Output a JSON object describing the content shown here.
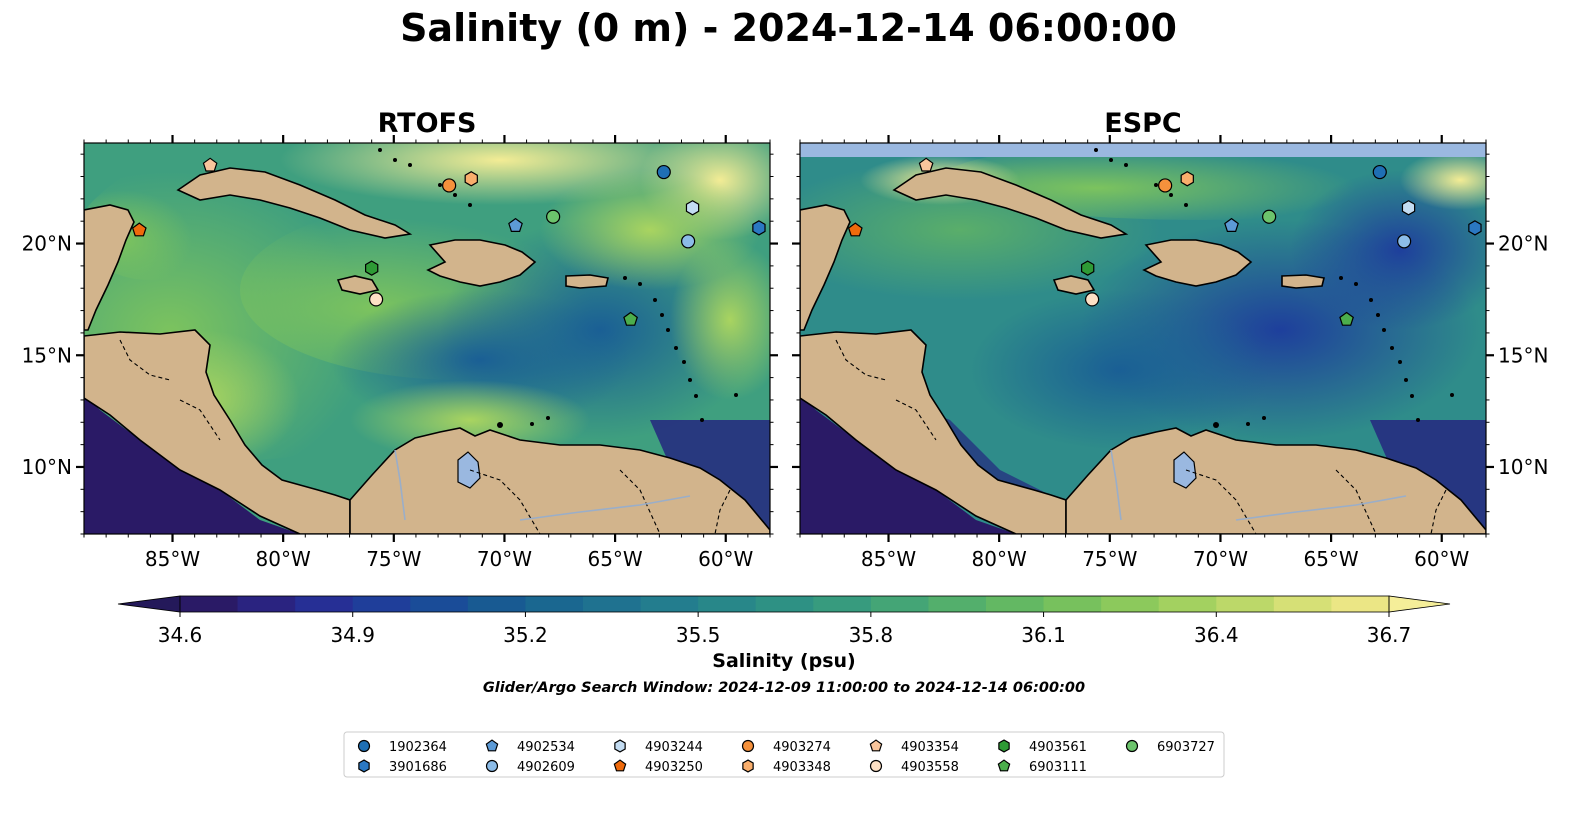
{
  "title": "Salinity (0 m) - 2024-12-14 06:00:00",
  "panels": [
    {
      "name": "RTOFS"
    },
    {
      "name": "ESPC"
    }
  ],
  "map": {
    "lon_range": [
      -89,
      -58
    ],
    "lat_range": [
      7,
      24.5
    ],
    "lon_ticks": [
      {
        "value": -85,
        "label": "85°W"
      },
      {
        "value": -80,
        "label": "80°W"
      },
      {
        "value": -75,
        "label": "75°W"
      },
      {
        "value": -70,
        "label": "70°W"
      },
      {
        "value": -65,
        "label": "65°W"
      },
      {
        "value": -60,
        "label": "60°W"
      }
    ],
    "lat_ticks": [
      {
        "value": 10,
        "label": "10°N"
      },
      {
        "value": 15,
        "label": "15°N"
      },
      {
        "value": 20,
        "label": "20°N"
      }
    ],
    "land_color": "#d2b48c",
    "lake_color": "#9ab8e0",
    "no_data_color": "#9ab8e0"
  },
  "colorbar": {
    "title": "Salinity (psu)",
    "min": 34.6,
    "max": 36.7,
    "ticks": [
      "34.6",
      "34.9",
      "35.2",
      "35.5",
      "35.8",
      "36.1",
      "36.4",
      "36.7"
    ],
    "colors": [
      "#2a1a66",
      "#2a2380",
      "#262f95",
      "#1f3e9a",
      "#1a4c98",
      "#185a92",
      "#1a6790",
      "#1f7290",
      "#237d8e",
      "#288789",
      "#2e9184",
      "#379b7e",
      "#44a576",
      "#53af6c",
      "#63b863",
      "#77c15d",
      "#8cc95c",
      "#a3d160",
      "#bcd869",
      "#d6e076",
      "#ebe685"
    ],
    "under_color": "#24195a",
    "over_color": "#f5ee99"
  },
  "search_window": "Glider/Argo Search Window: 2024-12-09 11:00:00 to 2024-12-14 06:00:00",
  "floats": [
    {
      "id": "1902364",
      "marker": "circle",
      "color": "#1f6fb4",
      "lon": -62.8,
      "lat": 23.2
    },
    {
      "id": "3901686",
      "marker": "hexagon",
      "color": "#2b78c2",
      "lon": -58.5,
      "lat": 20.7
    },
    {
      "id": "4902534",
      "marker": "pentagon",
      "color": "#5c9ad6",
      "lon": -69.5,
      "lat": 20.8
    },
    {
      "id": "4902609",
      "marker": "circle",
      "color": "#8cbce8",
      "lon": -61.7,
      "lat": 20.1
    },
    {
      "id": "4903244",
      "marker": "hexagon",
      "color": "#c3dcf2",
      "lon": -61.5,
      "lat": 21.6
    },
    {
      "id": "4903250",
      "marker": "pentagon",
      "color": "#ef6a0c",
      "lon": -86.5,
      "lat": 20.6
    },
    {
      "id": "4903274",
      "marker": "circle",
      "color": "#f5913c",
      "lon": -72.5,
      "lat": 22.6
    },
    {
      "id": "4903348",
      "marker": "hexagon",
      "color": "#f9ae6c",
      "lon": -71.5,
      "lat": 22.9
    },
    {
      "id": "4903354",
      "marker": "pentagon",
      "color": "#f8c59c",
      "lon": -83.3,
      "lat": 23.5
    },
    {
      "id": "4903558",
      "marker": "circle",
      "color": "#fde0c5",
      "lon": -75.8,
      "lat": 17.5
    },
    {
      "id": "4903561",
      "marker": "hexagon",
      "color": "#2e9a35",
      "lon": -76.0,
      "lat": 18.9
    },
    {
      "id": "6903111",
      "marker": "pentagon",
      "color": "#4cae4c",
      "lon": -64.3,
      "lat": 16.6
    },
    {
      "id": "6903727",
      "marker": "circle",
      "color": "#6cc46c",
      "lon": -67.8,
      "lat": 21.2
    }
  ]
}
